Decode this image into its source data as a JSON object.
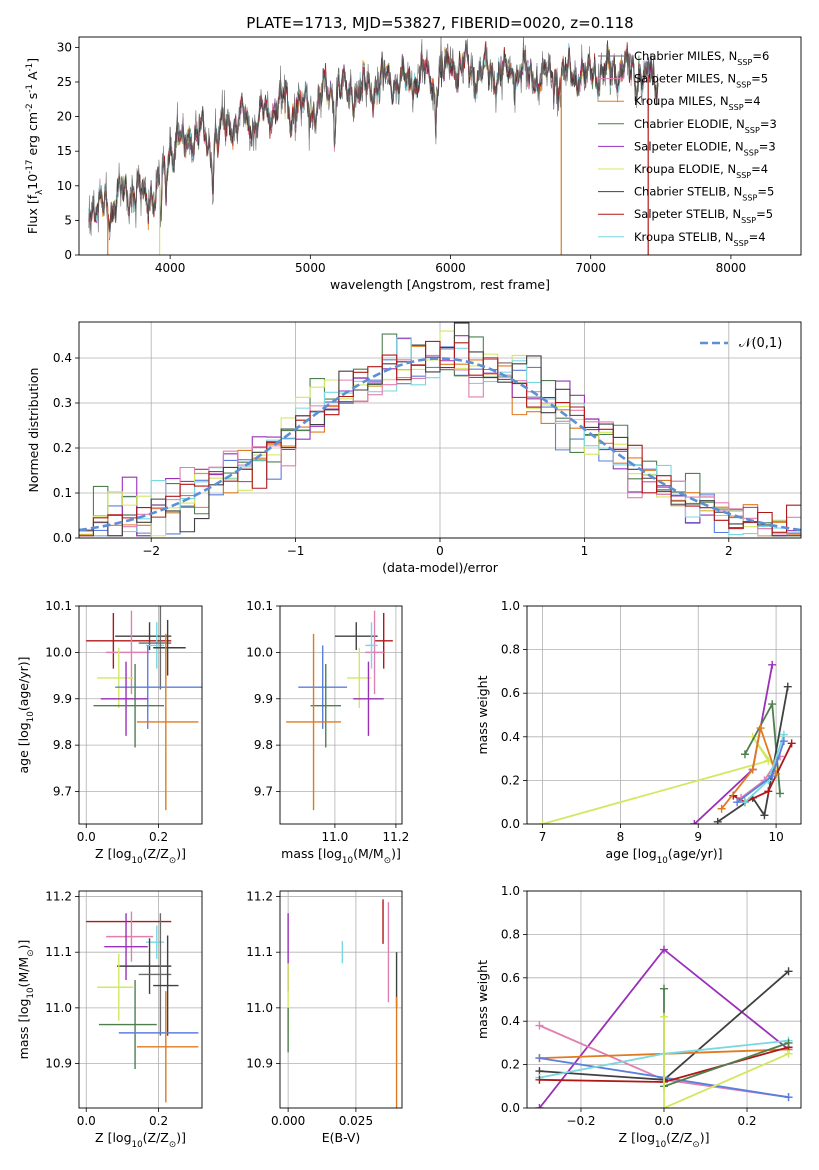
{
  "title": "PLATE=1713, MJD=53827, FIBERID=0020, z=0.118",
  "colors": {
    "chabrier_miles": "#6a6a6a",
    "salpeter_miles": "#e080b0",
    "kroupa_miles": "#e07a20",
    "chabrier_elodie": "#4f7f4f",
    "salpeter_elodie": "#9a30b8",
    "kroupa_elodie": "#d2e860",
    "chabrier_stelib": "#404040",
    "salpeter_stelib": "#b01818",
    "kroupa_stelib": "#78d8e0",
    "gaussian": "#5b8fd6",
    "extra_blue": "#5b7fdc"
  },
  "chart_data": [
    {
      "id": "spectrum",
      "type": "line",
      "xlabel": "wavelength [Angstrom, rest frame]",
      "ylabel": "Flux [f$_\\lambda$10$^{-17}$ erg cm$^{-2}$ s$^{-1}$ A$^{-1}$]",
      "xlim": [
        3350,
        8500
      ],
      "ylim": [
        0,
        31.5
      ],
      "xticks": [
        4000,
        5000,
        6000,
        7000,
        8000
      ],
      "yticks": [
        0,
        5,
        10,
        15,
        20,
        25,
        30
      ],
      "grid": false,
      "legend_position": "top-right",
      "legend": [
        {
          "label": "Chabrier MILES, N$_{SSP}$=6",
          "color": "chabrier_miles"
        },
        {
          "label": "Salpeter MILES, N$_{SSP}$=5",
          "color": "salpeter_miles"
        },
        {
          "label": "Kroupa MILES, N$_{SSP}$=4",
          "color": "kroupa_miles"
        },
        {
          "label": "Chabrier ELODIE, N$_{SSP}$=3",
          "color": "chabrier_elodie"
        },
        {
          "label": "Salpeter ELODIE, N$_{SSP}$=3",
          "color": "salpeter_elodie"
        },
        {
          "label": "Kroupa ELODIE, N$_{SSP}$=4",
          "color": "kroupa_elodie"
        },
        {
          "label": "Chabrier STELIB, N$_{SSP}$=5",
          "color": "chabrier_stelib"
        },
        {
          "label": "Salpeter STELIB, N$_{SSP}$=5",
          "color": "salpeter_stelib"
        },
        {
          "label": "Kroupa STELIB, N$_{SSP}$=4",
          "color": "kroupa_stelib"
        }
      ],
      "spectrum_envelope": {
        "x": [
          3420,
          3500,
          3600,
          3700,
          3800,
          3900,
          3950,
          4000,
          4100,
          4200,
          4300,
          4400,
          4500,
          4600,
          4700,
          4800,
          4900,
          5000,
          5100,
          5200,
          5300,
          5400,
          5500,
          5600,
          5700,
          5800,
          5900,
          6000,
          6100,
          6200,
          6300,
          6400,
          6500,
          6600,
          6700,
          6800,
          6900,
          7000,
          7100,
          7200,
          7300,
          7400,
          7500
        ],
        "y": [
          7.2,
          6.5,
          7.5,
          9.5,
          8.5,
          8.8,
          11.5,
          15.5,
          16.8,
          17.5,
          16.0,
          18.5,
          19.5,
          19.0,
          21.0,
          22.0,
          22.0,
          20.5,
          23.5,
          23.5,
          24.0,
          24.2,
          25.0,
          25.5,
          25.0,
          26.0,
          25.0,
          27.5,
          27.0,
          26.5,
          26.5,
          26.0,
          26.5,
          26.0,
          25.5,
          26.0,
          26.0,
          26.5,
          26.5,
          27.0,
          26.5,
          26.0,
          26.0
        ]
      },
      "spike_drops_x": [
        3555,
        3925,
        6790,
        7410
      ]
    },
    {
      "id": "residuals",
      "type": "line",
      "xlabel": "(data-model)/error",
      "ylabel": "Normed distribution",
      "xlim": [
        -2.5,
        2.5
      ],
      "ylim": [
        0,
        0.48
      ],
      "xticks": [
        -2,
        -1,
        0,
        1,
        2
      ],
      "yticks": [
        0.0,
        0.1,
        0.2,
        0.3,
        0.4
      ],
      "grid": true,
      "legend_position": "top-right",
      "legend": [
        {
          "label": "$\\mathcal{N}(0,1)$",
          "color": "gaussian"
        }
      ],
      "bin_width": 0.1
    },
    {
      "id": "age_vs_Z",
      "type": "scatter",
      "xlabel": "Z [log$_{10}$(Z/Z$_\\odot$)]",
      "ylabel": "age  [log$_{10}$(age/yr)]",
      "xlim": [
        -0.02,
        0.32
      ],
      "ylim": [
        9.63,
        10.1
      ],
      "xticks": [
        0.0,
        0.2
      ],
      "yticks": [
        9.7,
        9.8,
        9.9,
        10.0,
        10.1
      ],
      "grid": true,
      "points": [
        {
          "x": 0.175,
          "xerr": [
            0.095,
            0.06
          ],
          "y": 10.035,
          "yerr": [
            0.03,
            0.03
          ],
          "color": "chabrier_stelib"
        },
        {
          "x": 0.075,
          "xerr": [
            0.075,
            0.16
          ],
          "y": 10.025,
          "yerr": [
            0.06,
            0.06
          ],
          "color": "salpeter_stelib"
        },
        {
          "x": 0.125,
          "xerr": [
            0.07,
            0.05
          ],
          "y": 10.0,
          "yerr": [
            0.09,
            0.09
          ],
          "color": "salpeter_miles"
        },
        {
          "x": 0.195,
          "xerr": [
            0.03,
            0.02
          ],
          "y": 10.015,
          "yerr": [
            0.05,
            0.05
          ],
          "color": "kroupa_stelib"
        },
        {
          "x": 0.205,
          "xerr": [
            0.06,
            0.03
          ],
          "y": 10.02,
          "yerr": [
            0.1,
            0.1
          ],
          "color": "chabrier_miles"
        },
        {
          "x": 0.225,
          "xerr": [
            0.04,
            0.05
          ],
          "y": 10.01,
          "yerr": [
            0.06,
            0.06
          ],
          "color": "chabrier_stelib"
        },
        {
          "x": 0.09,
          "xerr": [
            0.06,
            0.04
          ],
          "y": 9.945,
          "yerr": [
            0.065,
            0.065
          ],
          "color": "kroupa_elodie"
        },
        {
          "x": 0.17,
          "xerr": [
            0.09,
            0.15
          ],
          "y": 9.925,
          "yerr": [
            0.09,
            0.09
          ],
          "color": "extra_blue"
        },
        {
          "x": 0.11,
          "xerr": [
            0.07,
            0.06
          ],
          "y": 9.9,
          "yerr": [
            0.08,
            0.08
          ],
          "color": "salpeter_elodie"
        },
        {
          "x": 0.135,
          "xerr": [
            0.115,
            0.08
          ],
          "y": 9.885,
          "yerr": [
            0.09,
            0.09
          ],
          "color": "chabrier_elodie"
        },
        {
          "x": 0.22,
          "xerr": [
            0.08,
            0.09
          ],
          "y": 9.85,
          "yerr": [
            0.19,
            0.19
          ],
          "color": "kroupa_miles"
        }
      ]
    },
    {
      "id": "age_vs_mass",
      "type": "scatter",
      "xlabel": "mass [log$_{10}$(M/M$_\\odot$)]",
      "ylabel": "",
      "xlim": [
        10.82,
        11.22
      ],
      "ylim": [
        9.63,
        10.1
      ],
      "xticks": [
        11.0,
        11.2
      ],
      "yticks": [
        9.7,
        9.8,
        9.9,
        10.0,
        10.1
      ],
      "grid": true,
      "points": [
        {
          "x": 11.07,
          "xerr": [
            0.07,
            0.07
          ],
          "y": 10.035,
          "yerr": [
            0.03,
            0.03
          ],
          "color": "chabrier_stelib"
        },
        {
          "x": 11.16,
          "xerr": [
            0.03,
            0.03
          ],
          "y": 10.025,
          "yerr": [
            0.06,
            0.06
          ],
          "color": "salpeter_stelib"
        },
        {
          "x": 11.13,
          "xerr": [
            0.03,
            0.03
          ],
          "y": 10.0,
          "yerr": [
            0.09,
            0.09
          ],
          "color": "salpeter_miles"
        },
        {
          "x": 11.12,
          "xerr": [
            0.02,
            0.02
          ],
          "y": 10.015,
          "yerr": [
            0.05,
            0.05
          ],
          "color": "kroupa_stelib"
        },
        {
          "x": 11.08,
          "xerr": [
            0.04,
            0.04
          ],
          "y": 9.945,
          "yerr": [
            0.065,
            0.065
          ],
          "color": "kroupa_elodie"
        },
        {
          "x": 10.96,
          "xerr": [
            0.08,
            0.08
          ],
          "y": 9.925,
          "yerr": [
            0.09,
            0.09
          ],
          "color": "extra_blue"
        },
        {
          "x": 11.11,
          "xerr": [
            0.05,
            0.05
          ],
          "y": 9.9,
          "yerr": [
            0.08,
            0.08
          ],
          "color": "salpeter_elodie"
        },
        {
          "x": 10.97,
          "xerr": [
            0.05,
            0.05
          ],
          "y": 9.885,
          "yerr": [
            0.09,
            0.09
          ],
          "color": "chabrier_elodie"
        },
        {
          "x": 10.93,
          "xerr": [
            0.09,
            0.09
          ],
          "y": 9.85,
          "yerr": [
            0.19,
            0.19
          ],
          "color": "kroupa_miles"
        }
      ]
    },
    {
      "id": "weight_vs_age",
      "type": "line",
      "xlabel": "age  [log$_{10}$(age/yr)]",
      "ylabel": "mass weight",
      "xlim": [
        6.8,
        10.32
      ],
      "ylim": [
        0,
        1.0
      ],
      "xticks": [
        7,
        8,
        9,
        10
      ],
      "yticks": [
        0.0,
        0.2,
        0.4,
        0.6,
        0.8,
        1.0
      ],
      "grid": true,
      "series": [
        {
          "color": "kroupa_elodie",
          "x": [
            7.0,
            9.9,
            9.7,
            10.0
          ],
          "y": [
            0.0,
            0.29,
            0.4,
            0.25
          ]
        },
        {
          "color": "salpeter_elodie",
          "x": [
            8.95,
            9.7,
            9.95
          ],
          "y": [
            0.0,
            0.25,
            0.73
          ]
        },
        {
          "color": "chabrier_elodie",
          "x": [
            9.6,
            9.95,
            10.05
          ],
          "y": [
            0.32,
            0.55,
            0.14
          ]
        },
        {
          "color": "chabrier_stelib",
          "x": [
            9.25,
            9.7,
            9.85,
            10.15
          ],
          "y": [
            0.01,
            0.12,
            0.04,
            0.63
          ]
        },
        {
          "color": "salpeter_stelib",
          "x": [
            9.45,
            9.6,
            9.9,
            10.2
          ],
          "y": [
            0.13,
            0.1,
            0.15,
            0.37
          ]
        },
        {
          "color": "kroupa_miles",
          "x": [
            9.3,
            9.7,
            9.8,
            10.0
          ],
          "y": [
            0.07,
            0.25,
            0.44,
            0.23
          ]
        },
        {
          "color": "salpeter_miles",
          "x": [
            9.55,
            9.85,
            10.05
          ],
          "y": [
            0.12,
            0.2,
            0.31
          ]
        },
        {
          "color": "kroupa_stelib",
          "x": [
            9.6,
            9.9,
            10.1
          ],
          "y": [
            0.1,
            0.2,
            0.41
          ]
        },
        {
          "color": "extra_blue",
          "x": [
            9.5,
            9.95,
            10.1
          ],
          "y": [
            0.1,
            0.22,
            0.38
          ]
        }
      ]
    },
    {
      "id": "mass_vs_Z",
      "type": "scatter",
      "xlabel": "Z [log$_{10}$(Z/Z$_\\odot$)]",
      "ylabel": "mass [log$_{10}$(M/M$_\\odot$)]",
      "xlim": [
        -0.02,
        0.32
      ],
      "ylim": [
        10.82,
        11.21
      ],
      "xticks": [
        0.0,
        0.2
      ],
      "yticks": [
        10.9,
        11.0,
        11.1,
        11.2
      ],
      "grid": true,
      "points": [
        {
          "x": 0.075,
          "xerr": [
            0.075,
            0.16
          ],
          "y": 11.155,
          "yerr": [
            0.0,
            0.0
          ],
          "color": "salpeter_stelib"
        },
        {
          "x": 0.125,
          "xerr": [
            0.07,
            0.06
          ],
          "y": 11.128,
          "yerr": [
            0.045,
            0.045
          ],
          "color": "salpeter_miles"
        },
        {
          "x": 0.195,
          "xerr": [
            0.03,
            0.02
          ],
          "y": 11.118,
          "yerr": [
            0.03,
            0.03
          ],
          "color": "kroupa_stelib"
        },
        {
          "x": 0.11,
          "xerr": [
            0.06,
            0.06
          ],
          "y": 11.11,
          "yerr": [
            0.06,
            0.06
          ],
          "color": "salpeter_elodie"
        },
        {
          "x": 0.175,
          "xerr": [
            0.09,
            0.06
          ],
          "y": 11.075,
          "yerr": [
            0.05,
            0.05
          ],
          "color": "chabrier_stelib"
        },
        {
          "x": 0.09,
          "xerr": [
            0.06,
            0.04
          ],
          "y": 11.037,
          "yerr": [
            0.06,
            0.06
          ],
          "color": "kroupa_elodie"
        },
        {
          "x": 0.135,
          "xerr": [
            0.1,
            0.06
          ],
          "y": 10.97,
          "yerr": [
            0.08,
            0.08
          ],
          "color": "chabrier_elodie"
        },
        {
          "x": 0.205,
          "xerr": [
            0.06,
            0.03
          ],
          "y": 11.06,
          "yerr": [
            0.11,
            0.11
          ],
          "color": "chabrier_miles"
        },
        {
          "x": 0.225,
          "xerr": [
            0.04,
            0.03
          ],
          "y": 11.04,
          "yerr": [
            0.09,
            0.09
          ],
          "color": "chabrier_stelib"
        },
        {
          "x": 0.2,
          "xerr": [
            0.11,
            0.11
          ],
          "y": 10.955,
          "yerr": [
            0.0,
            0.0
          ],
          "color": "extra_blue"
        },
        {
          "x": 0.22,
          "xerr": [
            0.08,
            0.09
          ],
          "y": 10.93,
          "yerr": [
            0.1,
            0.1
          ],
          "color": "kroupa_miles"
        }
      ]
    },
    {
      "id": "mass_vs_ebv",
      "type": "scatter",
      "xlabel": "E(B-V)",
      "ylabel": "",
      "xlim": [
        -0.003,
        0.042
      ],
      "ylim": [
        10.82,
        11.21
      ],
      "xticks": [
        0.0,
        0.025
      ],
      "xtick_labels": [
        "0.000",
        "0.025"
      ],
      "yticks": [
        10.9,
        11.0,
        11.1,
        11.2
      ],
      "grid": true,
      "points": [
        {
          "x": 0.0,
          "y": 11.1,
          "yerr": [
            0.07,
            0.07
          ],
          "color": "salpeter_elodie"
        },
        {
          "x": 0.0,
          "y": 11.02,
          "yerr": [
            0.06,
            0.06
          ],
          "color": "kroupa_elodie"
        },
        {
          "x": 0.0,
          "y": 10.96,
          "yerr": [
            0.04,
            0.04
          ],
          "color": "chabrier_elodie"
        },
        {
          "x": 0.02,
          "y": 11.1,
          "yerr": [
            0.02,
            0.02
          ],
          "color": "kroupa_stelib"
        },
        {
          "x": 0.035,
          "y": 11.155,
          "yerr": [
            0.04,
            0.04
          ],
          "color": "salpeter_stelib"
        },
        {
          "x": 0.037,
          "y": 11.1,
          "yerr": [
            0.09,
            0.09
          ],
          "color": "salpeter_miles"
        },
        {
          "x": 0.04,
          "y": 11.05,
          "yerr": [
            0.05,
            0.05
          ],
          "color": "chabrier_stelib"
        },
        {
          "x": 0.04,
          "y": 10.92,
          "yerr": [
            0.1,
            0.1
          ],
          "color": "kroupa_miles"
        }
      ]
    },
    {
      "id": "weight_vs_Z",
      "type": "line",
      "xlabel": "Z [log$_{10}$(Z/Z$_\\odot$)]",
      "ylabel": "mass weight",
      "xlim": [
        -0.33,
        0.33
      ],
      "ylim": [
        0,
        1.0
      ],
      "xticks": [
        -0.2,
        0.0,
        0.2
      ],
      "xtick_labels": [
        "−0.2",
        "0.0",
        "0.2"
      ],
      "yticks": [
        0.0,
        0.2,
        0.4,
        0.6,
        0.8,
        1.0
      ],
      "grid": true,
      "series": [
        {
          "color": "salpeter_elodie",
          "x": [
            -0.3,
            0.0,
            0.3
          ],
          "y": [
            0.0,
            0.73,
            0.27
          ]
        },
        {
          "color": "salpeter_miles",
          "x": [
            -0.3,
            0.0,
            0.3
          ],
          "y": [
            0.38,
            0.13,
            0.05
          ]
        },
        {
          "color": "chabrier_stelib",
          "x": [
            -0.3,
            0.0,
            0.3
          ],
          "y": [
            0.17,
            0.13,
            0.63
          ]
        },
        {
          "color": "kroupa_miles",
          "x": [
            -0.3,
            0.0,
            0.3
          ],
          "y": [
            0.23,
            0.25,
            0.27
          ]
        },
        {
          "color": "extra_blue",
          "x": [
            -0.3,
            0.0,
            0.3
          ],
          "y": [
            0.23,
            0.14,
            0.05
          ]
        },
        {
          "color": "kroupa_stelib",
          "x": [
            -0.3,
            0.0,
            0.3
          ],
          "y": [
            0.14,
            0.25,
            0.31
          ]
        },
        {
          "color": "salpeter_stelib",
          "x": [
            -0.3,
            0.0,
            0.3
          ],
          "y": [
            0.13,
            0.12,
            0.28
          ]
        },
        {
          "color": "chabrier_elodie",
          "x": [
            0.0,
            0.0,
            0.3
          ],
          "y": [
            0.55,
            0.1,
            0.3
          ]
        },
        {
          "color": "kroupa_elodie",
          "x": [
            0.0,
            0.0,
            0.3
          ],
          "y": [
            0.42,
            0.0,
            0.25
          ]
        }
      ]
    }
  ]
}
